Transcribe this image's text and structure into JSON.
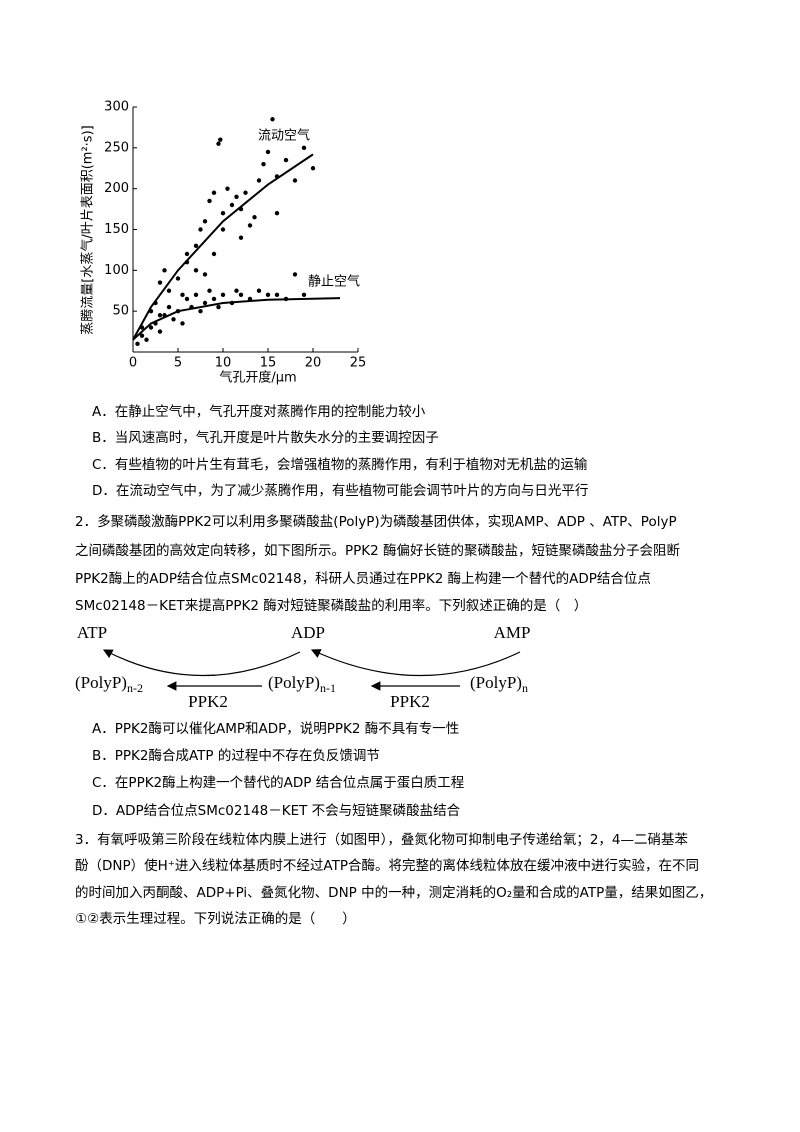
{
  "chart_data": {
    "type": "scatter",
    "ylabel": "蒸腾流量[水蒸气/叶片表面积(m²·s)]",
    "xlabel": "气孔开度/μm",
    "xlim": [
      0,
      25
    ],
    "xticks": [
      0,
      5,
      10,
      15,
      20,
      25
    ],
    "ylim": [
      0,
      300
    ],
    "yticks": [
      50,
      100,
      150,
      200,
      250,
      300
    ],
    "color": "#000000",
    "series": [
      {
        "name": "流动空气",
        "x": [
          1,
          2,
          2.5,
          3,
          3,
          3.5,
          4,
          5,
          5.5,
          6,
          6,
          7,
          7,
          7.5,
          8,
          8,
          8.5,
          9,
          9,
          9.5,
          9.7,
          10,
          10,
          10.5,
          11,
          11.5,
          12,
          12,
          12.5,
          13,
          13.5,
          14,
          14.5,
          15,
          15.5,
          16,
          16,
          17,
          18,
          19,
          20
        ],
        "y": [
          30,
          50,
          60,
          45,
          85,
          100,
          75,
          90,
          70,
          110,
          120,
          130,
          100,
          150,
          95,
          160,
          185,
          120,
          195,
          255,
          260,
          150,
          170,
          200,
          180,
          190,
          140,
          175,
          195,
          155,
          165,
          210,
          230,
          245,
          285,
          170,
          215,
          235,
          210,
          250,
          225
        ],
        "fit_x": [
          0,
          2,
          5,
          10,
          15,
          20
        ],
        "fit_y": [
          15,
          55,
          100,
          160,
          205,
          242
        ]
      },
      {
        "name": "静止空气",
        "x": [
          0.5,
          1,
          1.5,
          2,
          2.5,
          3,
          3.5,
          4,
          4.5,
          5,
          5.5,
          6,
          6.5,
          7,
          7.5,
          8,
          8.5,
          9,
          9.5,
          10,
          11,
          11.5,
          12,
          13,
          14,
          15,
          16,
          17,
          18,
          19
        ],
        "y": [
          10,
          20,
          15,
          30,
          35,
          25,
          45,
          55,
          40,
          50,
          35,
          65,
          55,
          70,
          50,
          60,
          75,
          65,
          55,
          70,
          60,
          75,
          70,
          65,
          75,
          70,
          70,
          65,
          95,
          70
        ],
        "fit_x": [
          0,
          2,
          5,
          10,
          15,
          23
        ],
        "fit_y": [
          15,
          35,
          50,
          60,
          64,
          66
        ]
      }
    ]
  },
  "q1_options": [
    "A．在静止空气中，气孔开度对蒸腾作用的控制能力较小",
    "B．当风速高时，气孔开度是叶片散失水分的主要调控因子",
    "C．有些植物的叶片生有茸毛，会增强植物的蒸腾作用，有利于植物对无机盐的运输",
    "D．在流动空气中，为了减少蒸腾作用，有些植物可能会调节叶片的方向与日光平行"
  ],
  "q2_lines": [
    "2．多聚磷酸激酶PPK2可以利用多聚磷酸盐(PolyP)为磷酸基团供体，实现AMP、ADP 、ATP、PolyP",
    "之间磷酸基团的高效定向转移，如下图所示。PPK2 酶偏好长链的聚磷酸盐，短链聚磷酸盐分子会阻断",
    "PPK2酶上的ADP结合位点SMc02148，科研人员通过在PPK2 酶上构建一个替代的ADP结合位点",
    "SMc02148－KET来提高PPK2 酶对短链聚磷酸盐的利用率。下列叙述正确的是（　）"
  ],
  "diagram": {
    "top": [
      "ATP",
      "ADP",
      "AMP"
    ],
    "polyp": "(PolyP)",
    "subs": [
      "n-2",
      "n-1",
      "n"
    ],
    "enzyme": "PPK2"
  },
  "q2_options": [
    "A．PPK2酶可以催化AMP和ADP，说明PPK2 酶不具有专一性",
    "B．PPK2酶合成ATP 的过程中不存在负反馈调节",
    "C．在PPK2酶上构建一个替代的ADP 结合位点属于蛋白质工程",
    "D．ADP结合位点SMc02148－KET 不会与短链聚磷酸盐结合"
  ],
  "q3_lines": [
    "3．有氧呼吸第三阶段在线粒体内膜上进行（如图甲），叠氮化物可抑制电子传递给氧；2，4—二硝基苯",
    "酚（DNP）使H⁺进入线粒体基质时不经过ATP合酶。将完整的离体线粒体放在缓冲液中进行实验，在不同",
    "的时间加入丙酮酸、ADP+Pi、叠氮化物、DNP 中的一种，测定消耗的O₂量和合成的ATP量，结果如图乙，",
    "①②表示生理过程。下列说法正确的是（　　）"
  ]
}
